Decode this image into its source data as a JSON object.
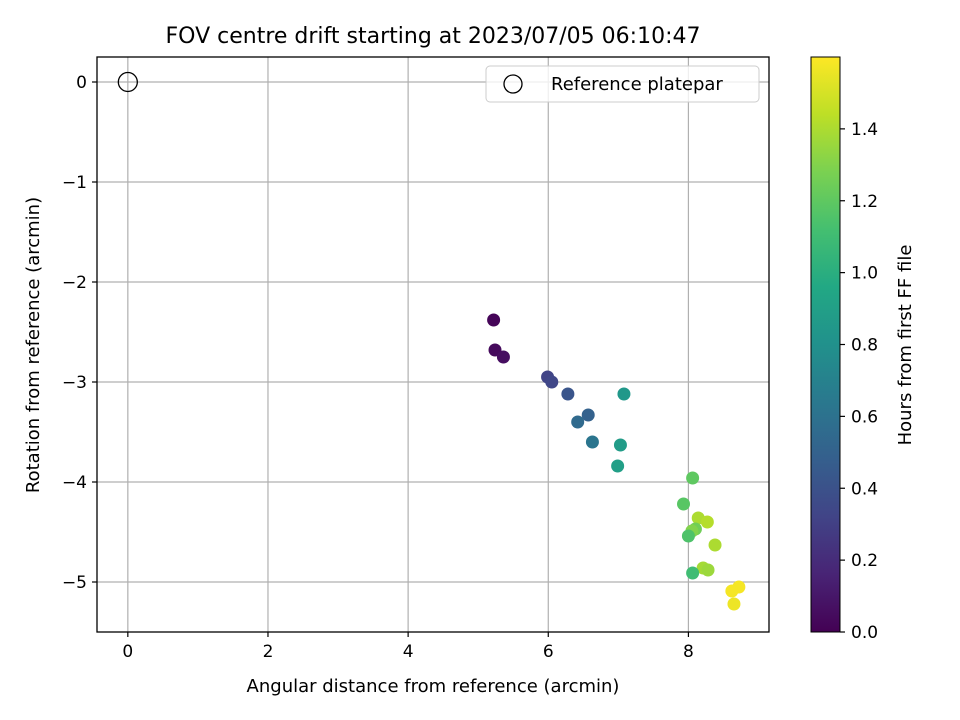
{
  "chart_data": {
    "type": "scatter",
    "title": "FOV centre drift starting at 2023/07/05 06:10:47",
    "xlabel": "Angular distance from reference (arcmin)",
    "ylabel": "Rotation from reference (arcmin)",
    "xlim": [
      -0.44,
      9.15
    ],
    "ylim": [
      -5.5,
      0.25
    ],
    "xticks": [
      0,
      2,
      4,
      6,
      8
    ],
    "yticks": [
      0,
      -1,
      -2,
      -3,
      -4,
      -5
    ],
    "xtick_labels": [
      "0",
      "2",
      "4",
      "6",
      "8"
    ],
    "ytick_labels": [
      "0",
      "−1",
      "−2",
      "−3",
      "−4",
      "−5"
    ],
    "grid": true,
    "legend": {
      "position": "upper right",
      "entries": [
        "Reference platepar"
      ]
    },
    "reference_point": {
      "x": 0,
      "y": 0,
      "label": "Reference platepar"
    },
    "colorbar": {
      "label": "Hours from first FF file",
      "range": [
        0.0,
        1.6
      ],
      "ticks": [
        0.0,
        0.2,
        0.4,
        0.6,
        0.8,
        1.0,
        1.2,
        1.4
      ],
      "tick_labels": [
        "0.0",
        "0.2",
        "0.4",
        "0.6",
        "0.8",
        "1.0",
        "1.2",
        "1.4"
      ],
      "colormap": "viridis"
    },
    "series": [
      {
        "points": [
          {
            "x": 5.22,
            "y": -2.38,
            "c": 0.02
          },
          {
            "x": 5.24,
            "y": -2.68,
            "c": 0.04
          },
          {
            "x": 5.36,
            "y": -2.75,
            "c": 0.06
          },
          {
            "x": 5.99,
            "y": -2.95,
            "c": 0.32
          },
          {
            "x": 6.05,
            "y": -3.0,
            "c": 0.34
          },
          {
            "x": 6.28,
            "y": -3.12,
            "c": 0.42
          },
          {
            "x": 6.57,
            "y": -3.33,
            "c": 0.5
          },
          {
            "x": 6.42,
            "y": -3.4,
            "c": 0.55
          },
          {
            "x": 6.63,
            "y": -3.6,
            "c": 0.62
          },
          {
            "x": 7.08,
            "y": -3.12,
            "c": 0.85
          },
          {
            "x": 7.03,
            "y": -3.63,
            "c": 0.88
          },
          {
            "x": 6.99,
            "y": -3.84,
            "c": 0.9
          },
          {
            "x": 8.06,
            "y": -3.96,
            "c": 1.2
          },
          {
            "x": 7.93,
            "y": -4.22,
            "c": 1.18
          },
          {
            "x": 8.14,
            "y": -4.36,
            "c": 1.4
          },
          {
            "x": 8.27,
            "y": -4.4,
            "c": 1.42
          },
          {
            "x": 8.1,
            "y": -4.47,
            "c": 1.25
          },
          {
            "x": 8.05,
            "y": -4.49,
            "c": 1.3
          },
          {
            "x": 8.0,
            "y": -4.54,
            "c": 1.15
          },
          {
            "x": 8.38,
            "y": -4.63,
            "c": 1.4
          },
          {
            "x": 8.21,
            "y": -4.86,
            "c": 1.38
          },
          {
            "x": 8.28,
            "y": -4.88,
            "c": 1.36
          },
          {
            "x": 8.06,
            "y": -4.91,
            "c": 1.1
          },
          {
            "x": 8.72,
            "y": -5.05,
            "c": 1.58
          },
          {
            "x": 8.62,
            "y": -5.09,
            "c": 1.58
          },
          {
            "x": 8.65,
            "y": -5.22,
            "c": 1.56
          }
        ]
      }
    ]
  }
}
